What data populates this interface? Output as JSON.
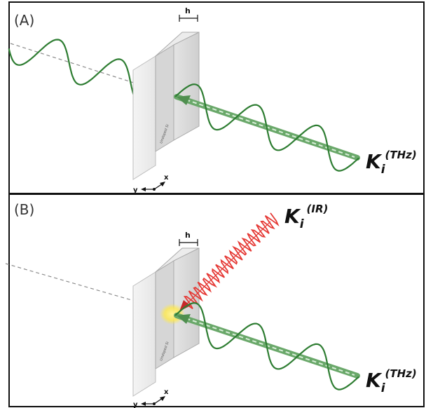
{
  "panels": [
    {
      "label": "(A)",
      "thickness_label": "h",
      "slab_text": "Undoped Si",
      "beam": {
        "symbol": "K",
        "subscript": "i",
        "superscript": "(THz)"
      },
      "axes": {
        "y": "y",
        "x": "x"
      }
    },
    {
      "label": "(B)",
      "thickness_label": "h",
      "slab_text": "Undoped Si",
      "beam": {
        "symbol": "K",
        "subscript": "i",
        "superscript": "(THz)"
      },
      "ir_beam": {
        "symbol": "K",
        "subscript": "i",
        "superscript": "(IR)"
      },
      "axes": {
        "y": "y",
        "x": "x"
      }
    }
  ],
  "colors": {
    "thz_wave": "#2e7d32",
    "thz_beam": "#6aa86a",
    "ir_wave": "#e53935",
    "hotspot": "#ffe94d"
  }
}
